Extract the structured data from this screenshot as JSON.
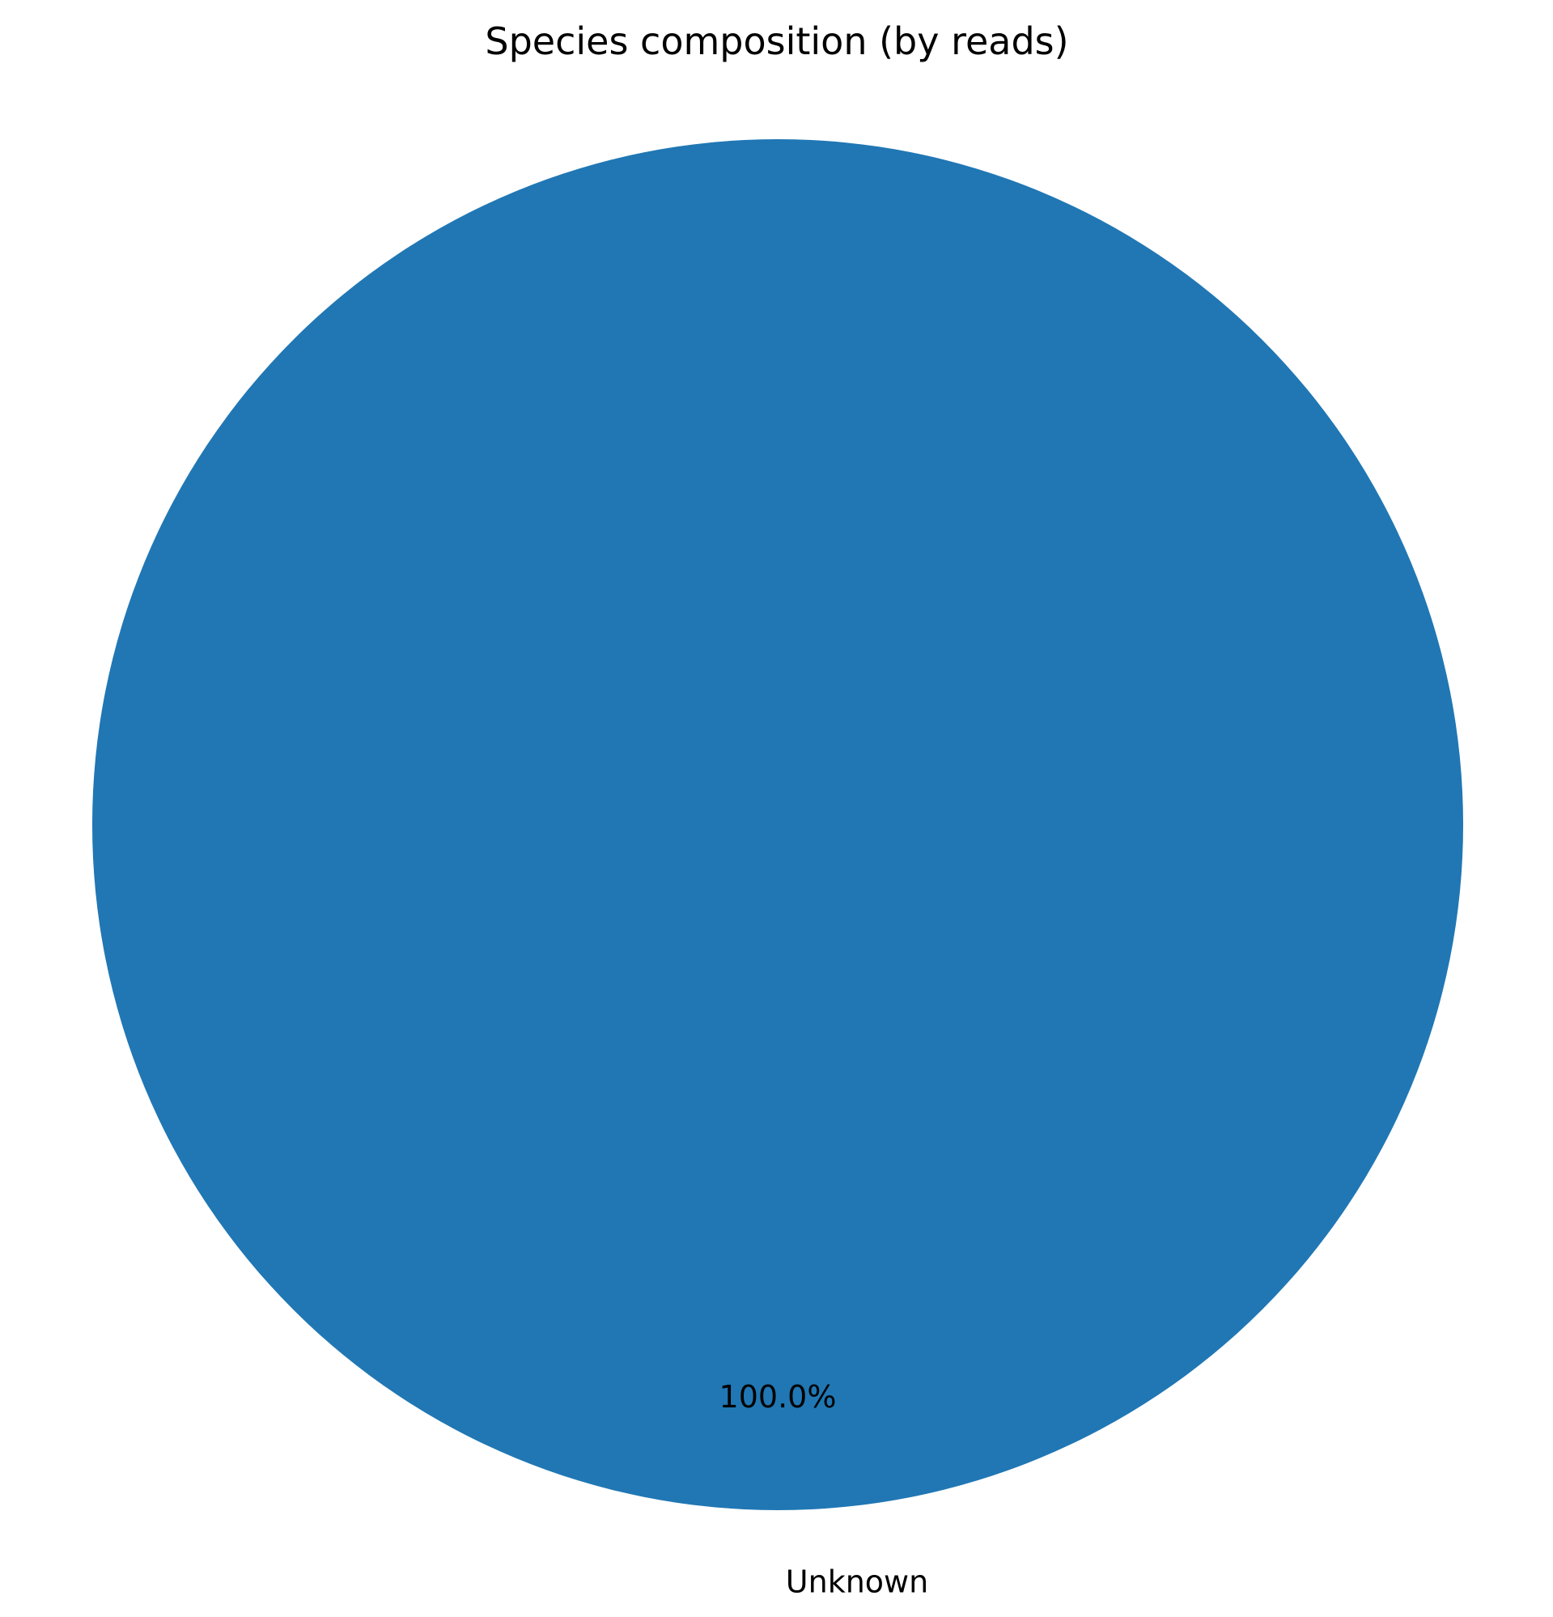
{
  "chart_data": {
    "type": "pie",
    "title": "Species composition (by reads)",
    "slices": [
      {
        "label": "Unknown",
        "value": 100.0,
        "percent_label": "100.0%",
        "color": "#2077b4"
      }
    ],
    "legend": "none"
  }
}
